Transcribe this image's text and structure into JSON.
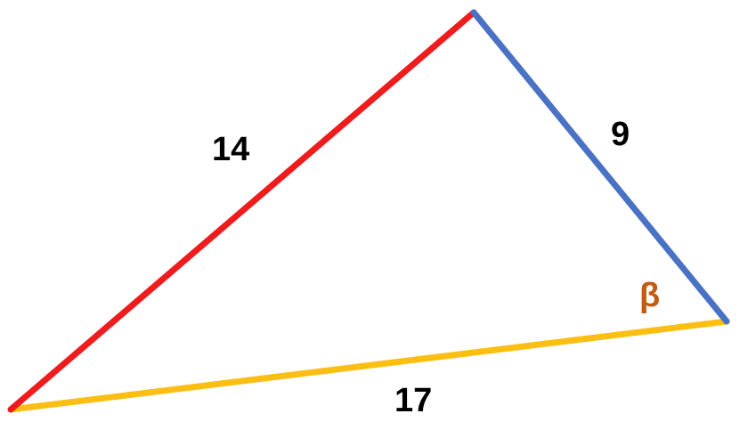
{
  "sides": {
    "left": {
      "label": "14",
      "color": "#ee1c1c"
    },
    "right": {
      "label": "9",
      "color": "#4a72c4"
    },
    "bottom": {
      "label": "17",
      "color": "#fbbf14"
    }
  },
  "angle": {
    "label": "β",
    "color": "#c55a11"
  }
}
